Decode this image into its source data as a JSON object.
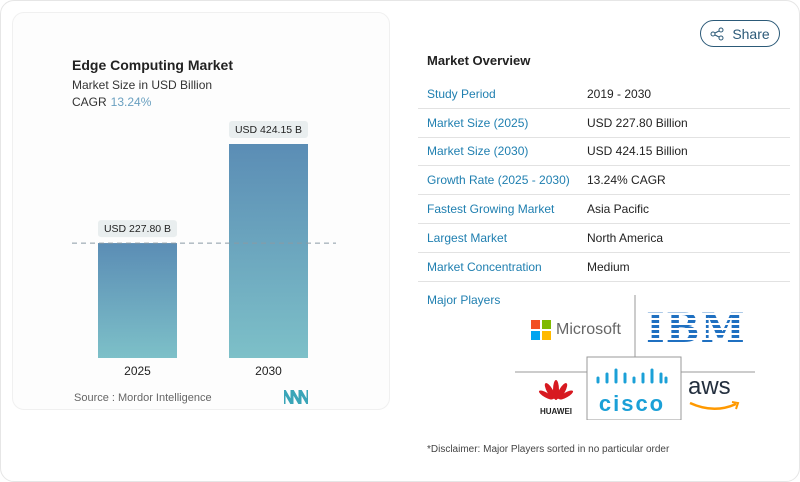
{
  "chart_data": {
    "type": "bar",
    "title": "Edge Computing Market",
    "subtitle": "Market Size in USD Billion",
    "cagr_label": "CAGR",
    "cagr_value": "13.24%",
    "categories": [
      "2025",
      "2030"
    ],
    "values": [
      227.8,
      424.15
    ],
    "data_labels": [
      "USD 227.80 B",
      "USD 424.15 B"
    ],
    "ylim": [
      0,
      424.15
    ],
    "grid": false,
    "colors": {
      "bar_top": "#5b8db5",
      "bar_bottom": "#7dc0c8",
      "cagr": "#6aa0c0"
    }
  },
  "source": "Source :  Mordor Intelligence",
  "share_label": "Share",
  "overview": {
    "title": "Market Overview",
    "rows": [
      {
        "label": "Study Period",
        "value": "2019 - 2030"
      },
      {
        "label": "Market Size (2025)",
        "value": "USD 227.80 Billion"
      },
      {
        "label": "Market Size (2030)",
        "value": "USD 424.15 Billion"
      },
      {
        "label": "Growth Rate (2025 - 2030)",
        "value": "13.24% CAGR"
      },
      {
        "label": "Fastest Growing Market",
        "value": "Asia Pacific"
      },
      {
        "label": "Largest Market",
        "value": "North America"
      },
      {
        "label": "Market Concentration",
        "value": "Medium"
      }
    ]
  },
  "players": {
    "title": "Major Players",
    "logos": [
      "Microsoft",
      "IBM",
      "HUAWEI",
      "cisco",
      "aws"
    ],
    "disclaimer": "*Disclaimer: Major Players sorted in no particular order"
  }
}
